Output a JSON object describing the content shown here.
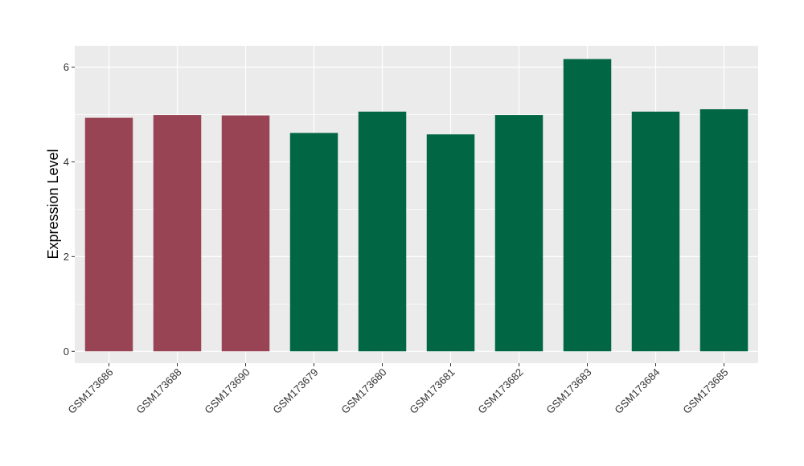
{
  "chart_data": {
    "type": "bar",
    "title": "",
    "xlabel": "",
    "ylabel": "Expression Level",
    "ylim": [
      -0.25,
      6.45
    ],
    "yticks": [
      0,
      2,
      4,
      6
    ],
    "categories": [
      "GSM173686",
      "GSM173688",
      "GSM173690",
      "GSM173679",
      "GSM173680",
      "GSM173681",
      "GSM173682",
      "GSM173683",
      "GSM173684",
      "GSM173685"
    ],
    "values": [
      4.93,
      4.99,
      4.98,
      4.61,
      5.06,
      4.58,
      4.99,
      6.17,
      5.06,
      5.11
    ],
    "bar_colors": [
      "#994455",
      "#994455",
      "#994455",
      "#006644",
      "#006644",
      "#006644",
      "#006644",
      "#006644",
      "#006644",
      "#006644"
    ],
    "grid": true,
    "panel_background": "#ebebeb",
    "grid_color": "#ffffff",
    "legend": "none"
  }
}
